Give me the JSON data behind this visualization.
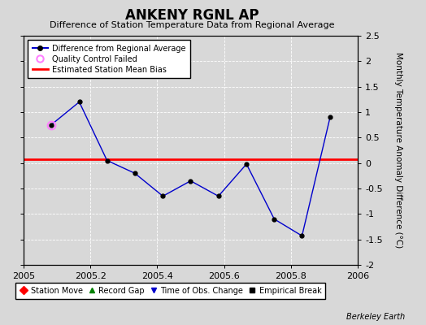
{
  "title": "ANKENY RGNL AP",
  "subtitle": "Difference of Station Temperature Data from Regional Average",
  "ylabel": "Monthly Temperature Anomaly Difference (°C)",
  "xlabel_credit": "Berkeley Earth",
  "xlim": [
    2005.0,
    2006.0
  ],
  "ylim": [
    -2.0,
    2.5
  ],
  "yticks": [
    -2,
    -1.5,
    -1,
    -0.5,
    0,
    0.5,
    1,
    1.5,
    2,
    2.5
  ],
  "xticks": [
    2005.0,
    2005.2,
    2005.4,
    2005.6,
    2005.8,
    2006.0
  ],
  "xtick_labels": [
    "2005",
    "2005.2",
    "2005.4",
    "2005.6",
    "2005.8",
    "2006"
  ],
  "ytick_labels": [
    "-2",
    "-1.5",
    "-1",
    "-0.5",
    "0",
    "0.5",
    "1",
    "1.5",
    "2",
    "2.5"
  ],
  "line_x": [
    2005.083,
    2005.167,
    2005.25,
    2005.333,
    2005.417,
    2005.5,
    2005.583,
    2005.667,
    2005.75,
    2005.833,
    2005.917
  ],
  "line_y": [
    0.75,
    1.2,
    0.05,
    -0.2,
    -0.65,
    -0.35,
    -0.65,
    -0.02,
    -1.1,
    -1.43,
    0.9
  ],
  "qc_fail_x": [
    2005.083
  ],
  "qc_fail_y": [
    0.75
  ],
  "bias_y": 0.07,
  "line_color": "#0000cc",
  "bias_color": "#ff0000",
  "qc_color": "#ff80ff",
  "background_color": "#d8d8d8",
  "grid_color": "#ffffff",
  "marker_color": "#000000",
  "title_fontsize": 12,
  "subtitle_fontsize": 8,
  "tick_fontsize": 8,
  "legend_fontsize": 7,
  "ylabel_fontsize": 7.5
}
